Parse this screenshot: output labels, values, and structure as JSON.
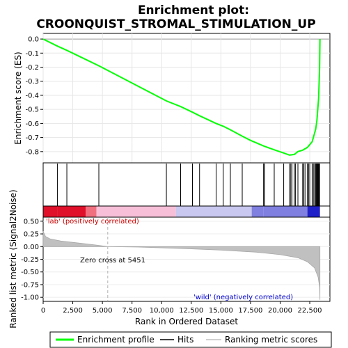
{
  "chart_data": {
    "type": "line",
    "title_line1": "Enrichment plot:",
    "title_line2": "CROONQUIST_STROMAL_STIMULATION_UP",
    "es_panel": {
      "ylabel": "Enrichment score (ES)",
      "ylim": [
        -0.88,
        0.04
      ],
      "yticks": [
        "0.0",
        "-0.1",
        "-0.2",
        "-0.3",
        "-0.4",
        "-0.5",
        "-0.6",
        "-0.7",
        "-0.8"
      ],
      "ytick_values": [
        0.0,
        -0.1,
        -0.2,
        -0.3,
        -0.4,
        -0.5,
        -0.6,
        -0.7,
        -0.8
      ],
      "series": [
        {
          "name": "Enrichment profile",
          "color": "#00ff00",
          "points": [
            [
              0,
              0.0
            ],
            [
              1200,
              -0.05
            ],
            [
              2000,
              -0.08
            ],
            [
              4700,
              -0.19
            ],
            [
              10400,
              -0.44
            ],
            [
              11600,
              -0.48
            ],
            [
              12600,
              -0.52
            ],
            [
              13200,
              -0.545
            ],
            [
              14600,
              -0.6
            ],
            [
              15200,
              -0.62
            ],
            [
              15800,
              -0.645
            ],
            [
              16800,
              -0.69
            ],
            [
              17500,
              -0.72
            ],
            [
              18600,
              -0.76
            ],
            [
              19600,
              -0.79
            ],
            [
              20300,
              -0.81
            ],
            [
              20800,
              -0.825
            ],
            [
              21200,
              -0.82
            ],
            [
              21500,
              -0.8
            ],
            [
              21900,
              -0.79
            ],
            [
              22300,
              -0.77
            ],
            [
              22700,
              -0.73
            ],
            [
              23000,
              -0.64
            ],
            [
              23100,
              -0.58
            ],
            [
              23250,
              -0.42
            ],
            [
              23330,
              -0.2
            ],
            [
              23360,
              0.0
            ]
          ]
        }
      ]
    },
    "hits": [
      1200,
      2000,
      4700,
      10400,
      11600,
      12600,
      13200,
      14600,
      15200,
      15800,
      16800,
      18600,
      18700,
      19500,
      20300,
      20800,
      20900,
      21000,
      21200,
      21300,
      21500,
      21900,
      22000,
      22100,
      22300,
      22400,
      22500,
      22700,
      22800,
      22900,
      23000,
      23050,
      23100,
      23150,
      23200,
      23250,
      23300,
      23330
    ],
    "ranked_panel": {
      "ylabel": "Ranked list metric (Signal2Noise)",
      "ylim": [
        -1.08,
        0.58
      ],
      "yticks": [
        "0.50",
        "0.25",
        "0.00",
        "-0.25",
        "-0.50",
        "-0.75",
        "-1.00"
      ],
      "ytick_values": [
        0.5,
        0.25,
        0.0,
        -0.25,
        -0.5,
        -0.75,
        -1.0
      ],
      "series": [
        {
          "name": "Ranking metric scores",
          "color": "#c0c0c0",
          "points": [
            [
              0,
              0.3
            ],
            [
              200,
              0.2
            ],
            [
              600,
              0.15
            ],
            [
              1500,
              0.11
            ],
            [
              3000,
              0.07
            ],
            [
              4500,
              0.03
            ],
            [
              5451,
              0.0
            ],
            [
              8000,
              -0.01
            ],
            [
              12000,
              -0.04
            ],
            [
              15000,
              -0.07
            ],
            [
              18000,
              -0.11
            ],
            [
              20000,
              -0.16
            ],
            [
              21500,
              -0.22
            ],
            [
              22300,
              -0.3
            ],
            [
              22900,
              -0.42
            ],
            [
              23200,
              -0.6
            ],
            [
              23330,
              -0.8
            ],
            [
              23360,
              -1.05
            ]
          ]
        }
      ],
      "zero_cross_label": "Zero cross at 5451",
      "zero_cross": 5451,
      "pos_label": "'lab' (positively correlated)",
      "neg_label": "'wild' (negatively correlated)"
    },
    "xlabel": "Rank in Ordered Dataset",
    "xlim": [
      0,
      24200
    ],
    "xticks": [
      "0",
      "2,500",
      "5,000",
      "7,500",
      "10,000",
      "12,500",
      "15,000",
      "17,500",
      "20,000",
      "22,500"
    ],
    "xtick_values": [
      0,
      2500,
      5000,
      7500,
      10000,
      12500,
      15000,
      17500,
      20000,
      22500
    ],
    "legend": {
      "placement": "bottom",
      "entries": [
        {
          "label": "Enrichment profile",
          "color": "#00ff00"
        },
        {
          "label": "Hits",
          "color": "#000000"
        },
        {
          "label": "Ranking metric scores",
          "color": "#c0c0c0"
        }
      ]
    },
    "heatmap_colors": {
      "pos_strong": "#e0102a",
      "pos_mid": "#f07080",
      "pos_light": "#f8c0d8",
      "neutral": "#e8e0f0",
      "neg_light": "#c8c8f0",
      "neg_mid": "#8080e0",
      "neg_strong": "#2020c8"
    }
  }
}
